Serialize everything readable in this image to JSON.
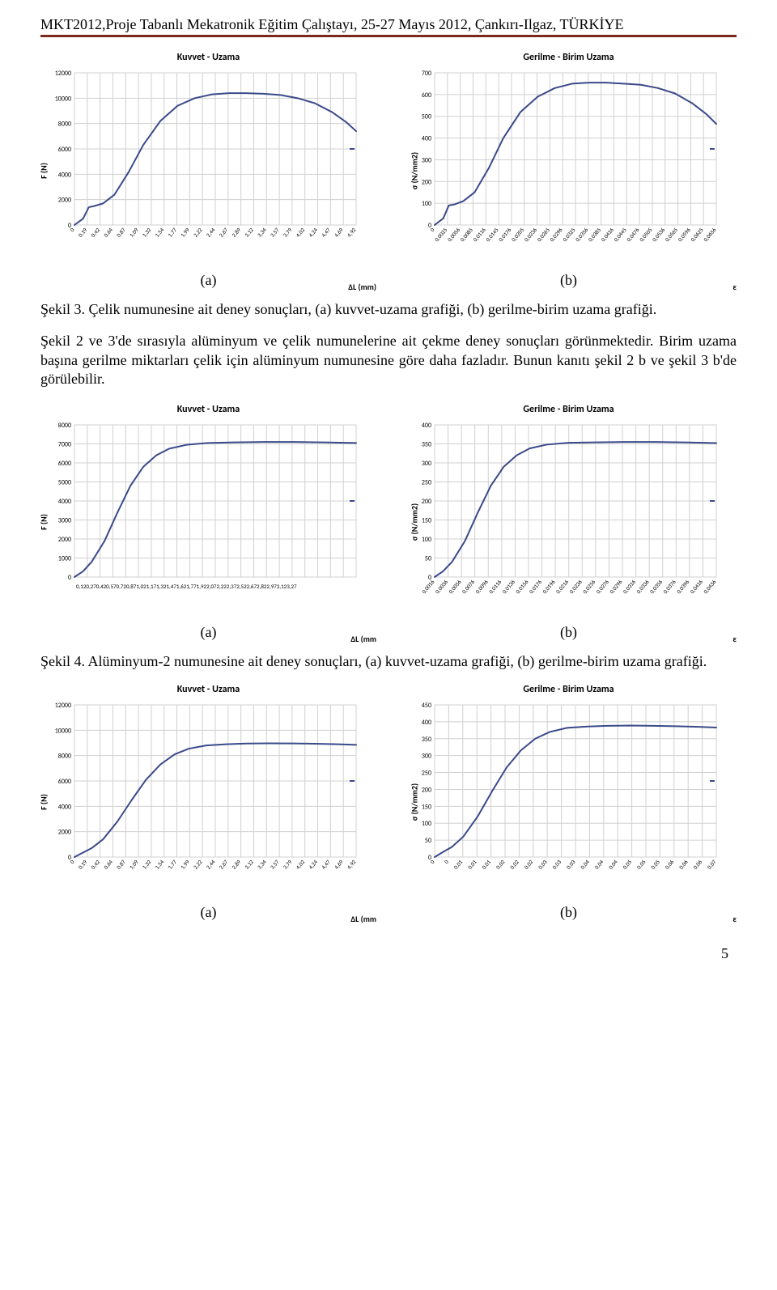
{
  "header": "MKT2012,Proje Tabanlı Mekatronik Eğitim Çalıştayı, 25-27 Mayıs 2012, Çankırı-Ilgaz, TÜRKİYE",
  "page_number": "5",
  "figures": {
    "fig3": {
      "label_a": "(a)",
      "label_b": "(b)",
      "caption": "Şekil 3. Çelik numunesine ait deney sonuçları, (a) kuvvet-uzama grafiği, (b) gerilme-birim uzama grafiği.",
      "chart_a": {
        "type": "line",
        "title": "Kuvvet - Uzama",
        "ylabel": "F (N)",
        "xlabel": "ΔL (mm)",
        "xlim": [
          0,
          4.92
        ],
        "ylim": [
          0,
          12000
        ],
        "ytick_step": 2000,
        "xticks": [
          0,
          0.19,
          0.42,
          0.64,
          0.87,
          1.09,
          1.32,
          1.54,
          1.77,
          1.99,
          2.22,
          2.44,
          2.67,
          2.89,
          3.12,
          3.34,
          3.57,
          3.79,
          4.02,
          4.24,
          4.47,
          4.69,
          4.92
        ],
        "line_color": "#3a4a8a",
        "line_width": 2,
        "grid_color": "#d0d0d0",
        "background_color": "#ffffff",
        "points": [
          [
            0,
            0
          ],
          [
            0.15,
            500
          ],
          [
            0.25,
            1400
          ],
          [
            0.35,
            1500
          ],
          [
            0.5,
            1700
          ],
          [
            0.7,
            2400
          ],
          [
            0.95,
            4200
          ],
          [
            1.2,
            6300
          ],
          [
            1.5,
            8200
          ],
          [
            1.8,
            9400
          ],
          [
            2.1,
            10000
          ],
          [
            2.4,
            10300
          ],
          [
            2.7,
            10400
          ],
          [
            3.0,
            10400
          ],
          [
            3.3,
            10350
          ],
          [
            3.6,
            10250
          ],
          [
            3.9,
            10000
          ],
          [
            4.2,
            9600
          ],
          [
            4.5,
            8900
          ],
          [
            4.75,
            8100
          ],
          [
            4.92,
            7400
          ]
        ]
      },
      "chart_b": {
        "type": "line",
        "title": "Gerilme - Birim Uzama",
        "ylabel": "σ (N/mm2)",
        "xlabel": "ε",
        "xlim": [
          0,
          0.0656
        ],
        "ylim": [
          0,
          700
        ],
        "ytick_step": 100,
        "xticks": [
          0,
          0.0025,
          0.0056,
          0.0085,
          0.0116,
          0.0145,
          0.0176,
          0.0205,
          0.0236,
          0.0265,
          0.0296,
          0.0325,
          0.0356,
          0.0385,
          0.0416,
          0.0445,
          0.0476,
          0.0505,
          0.0536,
          0.0565,
          0.0596,
          0.0625,
          0.0656
        ],
        "line_color": "#3a4a8a",
        "line_width": 2,
        "grid_color": "#d0d0d0",
        "background_color": "#ffffff",
        "points": [
          [
            0,
            0
          ],
          [
            0.002,
            30
          ],
          [
            0.0033,
            90
          ],
          [
            0.0047,
            95
          ],
          [
            0.0067,
            110
          ],
          [
            0.0093,
            150
          ],
          [
            0.0127,
            265
          ],
          [
            0.016,
            400
          ],
          [
            0.02,
            520
          ],
          [
            0.024,
            590
          ],
          [
            0.028,
            630
          ],
          [
            0.032,
            650
          ],
          [
            0.036,
            655
          ],
          [
            0.04,
            655
          ],
          [
            0.044,
            650
          ],
          [
            0.048,
            645
          ],
          [
            0.052,
            630
          ],
          [
            0.056,
            605
          ],
          [
            0.06,
            560
          ],
          [
            0.0633,
            510
          ],
          [
            0.0656,
            465
          ]
        ]
      }
    },
    "intermediate_text": "Şekil 2 ve 3'de sırasıyla alüminyum ve çelik numunelerine ait çekme deney sonuçları görünmektedir. Birim uzama başına gerilme miktarları çelik için alüminyum numunesine göre daha fazladır. Bunun kanıtı şekil 2 b ve şekil 3 b'de görülebilir.",
    "fig4": {
      "label_a": "(a)",
      "label_b": "(b)",
      "caption": "Şekil 4. Alüminyum-2 numunesine ait deney sonuçları, (a) kuvvet-uzama grafiği, (b) gerilme-birim uzama grafiği.",
      "chart_a": {
        "type": "line",
        "title": "Kuvvet - Uzama",
        "ylabel": "F (N)",
        "xlabel": "ΔL (mm",
        "xlim": [
          0,
          3.27
        ],
        "ylim": [
          0,
          8000
        ],
        "ytick_step": 1000,
        "xticks_label": "0,120,270,420,570,720,871,021,171,321,471,621,771,922,072,222,372,522,672,822,973,123,27",
        "line_color": "#3a4a8a",
        "line_width": 2,
        "grid_color": "#d0d0d0",
        "background_color": "#ffffff",
        "points": [
          [
            0,
            0
          ],
          [
            0.1,
            300
          ],
          [
            0.2,
            800
          ],
          [
            0.35,
            1900
          ],
          [
            0.5,
            3400
          ],
          [
            0.65,
            4800
          ],
          [
            0.8,
            5800
          ],
          [
            0.95,
            6400
          ],
          [
            1.1,
            6750
          ],
          [
            1.3,
            6950
          ],
          [
            1.55,
            7050
          ],
          [
            1.85,
            7080
          ],
          [
            2.2,
            7100
          ],
          [
            2.55,
            7100
          ],
          [
            2.9,
            7080
          ],
          [
            3.27,
            7050
          ]
        ]
      },
      "chart_b": {
        "type": "line",
        "title": "Gerilme - Birim Uzama",
        "ylabel": "σ (N/mm2)",
        "xlabel": "ε",
        "xlim": [
          0,
          0.0436
        ],
        "ylim": [
          0,
          400
        ],
        "ytick_step": 50,
        "xticks": [
          0.0016,
          0.0036,
          0.0056,
          0.0076,
          0.0096,
          0.0116,
          0.0136,
          0.0156,
          0.0176,
          0.0196,
          0.0216,
          0.0236,
          0.0256,
          0.0276,
          0.0296,
          0.0316,
          0.0336,
          0.0356,
          0.0376,
          0.0396,
          0.0416,
          0.0436
        ],
        "line_color": "#3a4a8a",
        "line_width": 2,
        "grid_color": "#d0d0d0",
        "background_color": "#ffffff",
        "points": [
          [
            0,
            0
          ],
          [
            0.0013,
            15
          ],
          [
            0.0027,
            40
          ],
          [
            0.0047,
            95
          ],
          [
            0.0067,
            170
          ],
          [
            0.0087,
            240
          ],
          [
            0.0107,
            290
          ],
          [
            0.0127,
            320
          ],
          [
            0.0147,
            338
          ],
          [
            0.0173,
            348
          ],
          [
            0.0207,
            353
          ],
          [
            0.0247,
            354
          ],
          [
            0.0293,
            355
          ],
          [
            0.034,
            355
          ],
          [
            0.0387,
            354
          ],
          [
            0.0436,
            352
          ]
        ]
      }
    },
    "fig5": {
      "label_a": "(a)",
      "label_b": "(b)",
      "chart_a": {
        "type": "line",
        "title": "Kuvvet - Uzama",
        "ylabel": "F (N)",
        "xlabel": "ΔL (mm",
        "xlim": [
          0,
          4.92
        ],
        "ylim": [
          0,
          12000
        ],
        "ytick_step": 2000,
        "xticks": [
          0,
          0.19,
          0.42,
          0.64,
          0.87,
          1.09,
          1.32,
          1.54,
          1.77,
          1.99,
          2.22,
          2.44,
          2.67,
          2.89,
          3.12,
          3.34,
          3.57,
          3.79,
          4.02,
          4.24,
          4.47,
          4.69,
          4.92
        ],
        "line_color": "#3a4a8a",
        "line_width": 2,
        "grid_color": "#d0d0d0",
        "background_color": "#ffffff",
        "points": [
          [
            0,
            0
          ],
          [
            0.15,
            350
          ],
          [
            0.3,
            700
          ],
          [
            0.5,
            1400
          ],
          [
            0.75,
            2800
          ],
          [
            1.0,
            4500
          ],
          [
            1.25,
            6100
          ],
          [
            1.5,
            7300
          ],
          [
            1.75,
            8100
          ],
          [
            2.0,
            8550
          ],
          [
            2.3,
            8800
          ],
          [
            2.65,
            8900
          ],
          [
            3.0,
            8950
          ],
          [
            3.4,
            8970
          ],
          [
            3.8,
            8960
          ],
          [
            4.2,
            8940
          ],
          [
            4.6,
            8900
          ],
          [
            4.92,
            8850
          ]
        ]
      },
      "chart_b": {
        "type": "line",
        "title": "Gerilme - Birim Uzama",
        "ylabel": "σ (N/mm2)",
        "xlabel": "ε",
        "xlim": [
          0,
          0.07
        ],
        "ylim": [
          0,
          450
        ],
        "ytick_step": 50,
        "xticks": [
          0,
          0,
          0.01,
          0.01,
          0.01,
          0.02,
          0.02,
          0.02,
          0.03,
          0.03,
          0.03,
          0.04,
          0.04,
          0.04,
          0.05,
          0.05,
          0.05,
          0.06,
          0.06,
          0.06,
          0.07
        ],
        "line_color": "#3a4a8a",
        "line_width": 2,
        "grid_color": "#d0d0d0",
        "background_color": "#ffffff",
        "points": [
          [
            0,
            0
          ],
          [
            0.0021,
            15
          ],
          [
            0.0043,
            30
          ],
          [
            0.0071,
            60
          ],
          [
            0.0107,
            120
          ],
          [
            0.0143,
            195
          ],
          [
            0.0179,
            265
          ],
          [
            0.0214,
            315
          ],
          [
            0.025,
            350
          ],
          [
            0.0286,
            370
          ],
          [
            0.0329,
            382
          ],
          [
            0.0379,
            386
          ],
          [
            0.0429,
            388
          ],
          [
            0.0486,
            389
          ],
          [
            0.0543,
            388
          ],
          [
            0.06,
            387
          ],
          [
            0.0657,
            385
          ],
          [
            0.07,
            383
          ]
        ]
      }
    }
  }
}
